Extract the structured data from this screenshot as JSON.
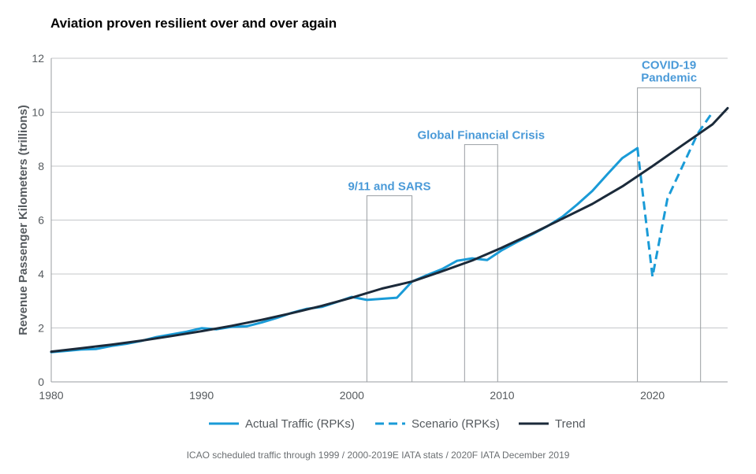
{
  "chart_data": {
    "type": "line",
    "title": "Aviation proven resilient over and over again",
    "ylabel": "Revenue Passenger Kilometers (trillions)",
    "xlabel": "",
    "xlim": [
      1980,
      2025
    ],
    "ylim": [
      0,
      12
    ],
    "x_ticks": [
      1980,
      1990,
      2000,
      2010,
      2020
    ],
    "y_ticks": [
      0,
      2,
      4,
      6,
      8,
      10,
      12
    ],
    "grid": "horizontal",
    "legend_position": "bottom",
    "series": [
      {
        "name": "Actual Traffic (RPKs)",
        "style": "solid",
        "color": "#1a9bd7",
        "points": [
          [
            1980,
            1.1
          ],
          [
            1981,
            1.15
          ],
          [
            1982,
            1.2
          ],
          [
            1983,
            1.22
          ],
          [
            1984,
            1.33
          ],
          [
            1985,
            1.41
          ],
          [
            1986,
            1.52
          ],
          [
            1987,
            1.66
          ],
          [
            1988,
            1.76
          ],
          [
            1989,
            1.86
          ],
          [
            1990,
            1.99
          ],
          [
            1991,
            1.95
          ],
          [
            1992,
            2.04
          ],
          [
            1993,
            2.06
          ],
          [
            1994,
            2.2
          ],
          [
            1995,
            2.37
          ],
          [
            1996,
            2.56
          ],
          [
            1997,
            2.71
          ],
          [
            1998,
            2.78
          ],
          [
            1999,
            2.96
          ],
          [
            2000,
            3.15
          ],
          [
            2001,
            3.04
          ],
          [
            2002,
            3.08
          ],
          [
            2003,
            3.12
          ],
          [
            2004,
            3.72
          ],
          [
            2005,
            3.96
          ],
          [
            2006,
            4.18
          ],
          [
            2007,
            4.49
          ],
          [
            2008,
            4.58
          ],
          [
            2009,
            4.52
          ],
          [
            2010,
            4.89
          ],
          [
            2011,
            5.19
          ],
          [
            2012,
            5.47
          ],
          [
            2013,
            5.77
          ],
          [
            2014,
            6.12
          ],
          [
            2015,
            6.58
          ],
          [
            2016,
            7.08
          ],
          [
            2017,
            7.7
          ],
          [
            2018,
            8.3
          ],
          [
            2019,
            8.67
          ]
        ]
      },
      {
        "name": "Scenario (RPKs)",
        "style": "dashed",
        "color": "#1a9bd7",
        "points": [
          [
            2019,
            8.67
          ],
          [
            2020,
            3.9
          ],
          [
            2021,
            6.8
          ],
          [
            2022,
            8.0
          ],
          [
            2023,
            9.2
          ],
          [
            2024,
            10.0
          ]
        ]
      },
      {
        "name": "Trend",
        "style": "solid",
        "color": "#1b2a3a",
        "points": [
          [
            1980,
            1.12
          ],
          [
            1982,
            1.25
          ],
          [
            1984,
            1.38
          ],
          [
            1986,
            1.53
          ],
          [
            1988,
            1.7
          ],
          [
            1990,
            1.88
          ],
          [
            1992,
            2.08
          ],
          [
            1994,
            2.3
          ],
          [
            1996,
            2.55
          ],
          [
            1998,
            2.82
          ],
          [
            2000,
            3.12
          ],
          [
            2002,
            3.46
          ],
          [
            2004,
            3.72
          ],
          [
            2006,
            4.1
          ],
          [
            2008,
            4.5
          ],
          [
            2010,
            4.98
          ],
          [
            2012,
            5.5
          ],
          [
            2014,
            6.05
          ],
          [
            2016,
            6.6
          ],
          [
            2018,
            7.25
          ],
          [
            2020,
            8.0
          ],
          [
            2022,
            8.78
          ],
          [
            2024,
            9.55
          ],
          [
            2025,
            10.15
          ]
        ]
      }
    ],
    "annotations": [
      {
        "label": "9/11 and SARS",
        "x_start": 2001,
        "x_end": 2004,
        "y_top": 6.9
      },
      {
        "label": "Global Financial Crisis",
        "x_start": 2007.5,
        "x_end": 2009.7,
        "y_top": 8.8
      },
      {
        "label": "COVID-19 Pandemic",
        "lines": [
          "COVID-19",
          "Pandemic"
        ],
        "x_start": 2019,
        "x_end": 2023.2,
        "y_top": 10.9
      }
    ]
  },
  "source": "ICAO scheduled traffic through 1999 / 2000-2019E IATA stats / 2020F IATA December 2019",
  "colors": {
    "actual": "#1a9bd7",
    "trend": "#1b2a3a",
    "annotation_text": "#4a9ad8",
    "grid": "#c4c7ca"
  }
}
